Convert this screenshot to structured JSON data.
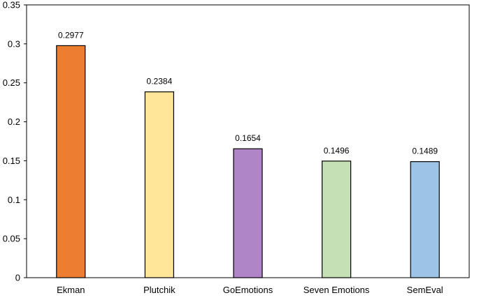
{
  "chart_data": {
    "type": "bar",
    "title": "",
    "xlabel": "",
    "ylabel": "",
    "categories": [
      "Ekman",
      "Plutchik",
      "GoEmotions",
      "Seven Emotions",
      "SemEval"
    ],
    "values": [
      0.2977,
      0.2384,
      0.1654,
      0.1496,
      0.1489
    ],
    "data_labels": [
      "0.2977",
      "0.2384",
      "0.1654",
      "0.1496",
      "0.1489"
    ],
    "colors": [
      "#ED7D31",
      "#FFE699",
      "#B085C8",
      "#C5E0B4",
      "#9DC3E6"
    ],
    "ylim": [
      0,
      0.35
    ],
    "yticks": [
      0,
      0.05,
      0.1,
      0.15,
      0.2,
      0.25,
      0.3,
      0.35
    ],
    "ytick_labels": [
      "0",
      "0.05",
      "0.1",
      "0.15",
      "0.2",
      "0.25",
      "0.3",
      "0.35"
    ],
    "grid": false,
    "legend": "none",
    "frame": true
  }
}
